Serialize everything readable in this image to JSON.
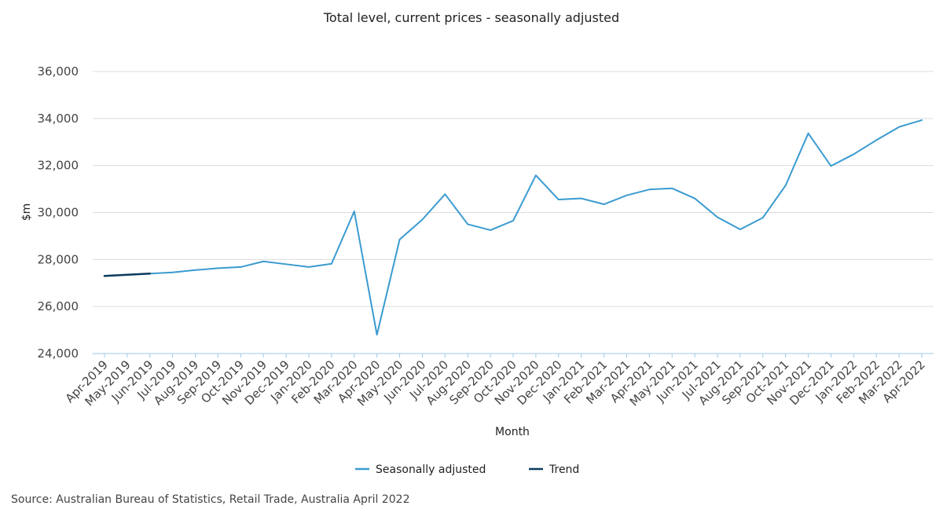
{
  "chart_data": {
    "type": "line",
    "title": "Total level, current prices - seasonally adjusted",
    "xlabel": "Month",
    "ylabel": "$m",
    "ylim": [
      24000,
      36000
    ],
    "yticks": [
      24000,
      26000,
      28000,
      30000,
      32000,
      34000,
      36000
    ],
    "ytick_labels": [
      "24,000",
      "26,000",
      "28,000",
      "30,000",
      "32,000",
      "34,000",
      "36,000"
    ],
    "grid": true,
    "legend_position": "bottom",
    "categories": [
      "Apr-2019",
      "May-2019",
      "Jun-2019",
      "Jul-2019",
      "Aug-2019",
      "Sep-2019",
      "Oct-2019",
      "Nov-2019",
      "Dec-2019",
      "Jan-2020",
      "Feb-2020",
      "Mar-2020",
      "Apr-2020",
      "May-2020",
      "Jun-2020",
      "Jul-2020",
      "Aug-2020",
      "Sep-2020",
      "Oct-2020",
      "Nov-2020",
      "Dec-2020",
      "Jan-2021",
      "Feb-2021",
      "Mar-2021",
      "Apr-2021",
      "May-2021",
      "Jun-2021",
      "Jul-2021",
      "Aug-2021",
      "Sep-2021",
      "Oct-2021",
      "Nov-2021",
      "Dec-2021",
      "Jan-2022",
      "Feb-2022",
      "Mar-2022",
      "Apr-2022"
    ],
    "series": [
      {
        "name": "Seasonally adjusted",
        "color": "#3a9bd0",
        "values": [
          27300,
          27350,
          27400,
          27450,
          27550,
          27630,
          27680,
          27920,
          27800,
          27680,
          27820,
          30050,
          24800,
          28850,
          29700,
          30780,
          29500,
          29250,
          29650,
          31580,
          30550,
          30600,
          30350,
          30730,
          30980,
          31030,
          30600,
          29800,
          29280,
          29780,
          31150,
          33370,
          31980,
          32480,
          33080,
          33640,
          33930
        ]
      },
      {
        "name": "Trend",
        "color": "#0b3a5e",
        "values": [
          27300,
          27350,
          27400,
          null,
          null,
          null,
          null,
          null,
          null,
          null,
          null,
          null,
          null,
          null,
          null,
          null,
          null,
          null,
          null,
          null,
          null,
          null,
          null,
          null,
          null,
          null,
          null,
          null,
          null,
          null,
          null,
          null,
          null,
          null,
          null,
          null,
          null
        ]
      }
    ]
  },
  "source": "Source: Australian Bureau of Statistics, Retail Trade, Australia April 2022"
}
